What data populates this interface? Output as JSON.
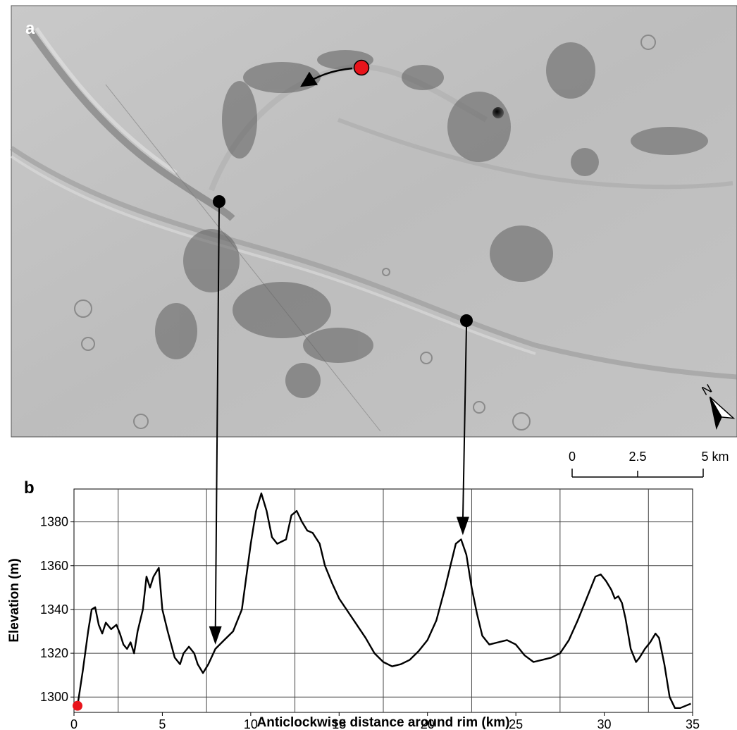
{
  "panel_a": {
    "label": "a",
    "compass": "N",
    "scale_bar": {
      "ticks": [
        "0",
        "2.5",
        "5 km"
      ]
    }
  },
  "panel_b": {
    "label": "b"
  },
  "colors": {
    "profile": "#000000",
    "start_marker": "#e8141b",
    "feature_marker": "#000000",
    "grid": "#444444",
    "terrain": "#b9b9b9"
  },
  "chart_data": {
    "type": "line",
    "title": "",
    "xlabel": "Anticlockwise distance around rim (km)",
    "ylabel": "Elevation (m)",
    "xlim": [
      0,
      35
    ],
    "ylim": [
      1293,
      1395
    ],
    "x_ticks": [
      0,
      5,
      10,
      15,
      20,
      25,
      30,
      35
    ],
    "y_ticks": [
      1300,
      1320,
      1340,
      1360,
      1380
    ],
    "vertical_grid": [
      2.5,
      7.5,
      12.5,
      17.5,
      22.5,
      27.5,
      32.5
    ],
    "horizontal_grid": [
      1300,
      1320,
      1340,
      1360,
      1380
    ],
    "series": [
      {
        "x": [
          0.2,
          0.5,
          0.8,
          1.0,
          1.2,
          1.4,
          1.6,
          1.8,
          2.1,
          2.4,
          2.6,
          2.8,
          3.0,
          3.2,
          3.4,
          3.6,
          3.9,
          4.1,
          4.3,
          4.5,
          4.8,
          5.0,
          5.3,
          5.7,
          6.0,
          6.2,
          6.5,
          6.8,
          7.0,
          7.3,
          7.6,
          8.0,
          8.5,
          9.0,
          9.5,
          10.0,
          10.3,
          10.6,
          10.9,
          11.2,
          11.5,
          12.0,
          12.3,
          12.6,
          12.9,
          13.2,
          13.5,
          13.9,
          14.2,
          14.6,
          15.0,
          15.5,
          16.0,
          16.5,
          17.0,
          17.5,
          18.0,
          18.5,
          19.0,
          19.5,
          20.0,
          20.5,
          21.0,
          21.3,
          21.6,
          21.9,
          22.2,
          22.5,
          22.8,
          23.1,
          23.5,
          24.0,
          24.5,
          25.0,
          25.5,
          26.0,
          26.5,
          27.0,
          27.5,
          28.0,
          28.5,
          29.0,
          29.5,
          29.8,
          30.1,
          30.4,
          30.6,
          30.8,
          31.0,
          31.2,
          31.5,
          31.8,
          32.0,
          32.3,
          32.6,
          32.9,
          33.1,
          33.4,
          33.7,
          34.0,
          34.3,
          34.6,
          34.9
        ],
        "y": [
          1296,
          1312,
          1330,
          1340,
          1341,
          1333,
          1329,
          1334,
          1331,
          1333,
          1329,
          1324,
          1322,
          1325,
          1320,
          1330,
          1340,
          1355,
          1350,
          1355,
          1359,
          1340,
          1330,
          1318,
          1315,
          1320,
          1323,
          1320,
          1315,
          1311,
          1315,
          1322,
          1326,
          1330,
          1340,
          1370,
          1385,
          1393,
          1385,
          1373,
          1370,
          1372,
          1383,
          1385,
          1380,
          1376,
          1375,
          1370,
          1360,
          1352,
          1345,
          1339,
          1333,
          1327,
          1320,
          1316,
          1314,
          1315,
          1317,
          1321,
          1326,
          1335,
          1350,
          1360,
          1370,
          1372,
          1365,
          1350,
          1338,
          1328,
          1324,
          1325,
          1326,
          1324,
          1319,
          1316,
          1317,
          1318,
          1320,
          1326,
          1335,
          1345,
          1355,
          1356,
          1353,
          1349,
          1345,
          1346,
          1343,
          1336,
          1322,
          1316,
          1318,
          1322,
          1325,
          1329,
          1327,
          1315,
          1300,
          1295,
          1295,
          1296,
          1297
        ]
      }
    ],
    "markers": [
      {
        "name": "start",
        "x": 0.2,
        "y": 1296
      },
      {
        "name": "feature-1",
        "x": 8.0,
        "y": 1322
      },
      {
        "name": "feature-2",
        "x": 22.0,
        "y": 1372
      }
    ]
  }
}
